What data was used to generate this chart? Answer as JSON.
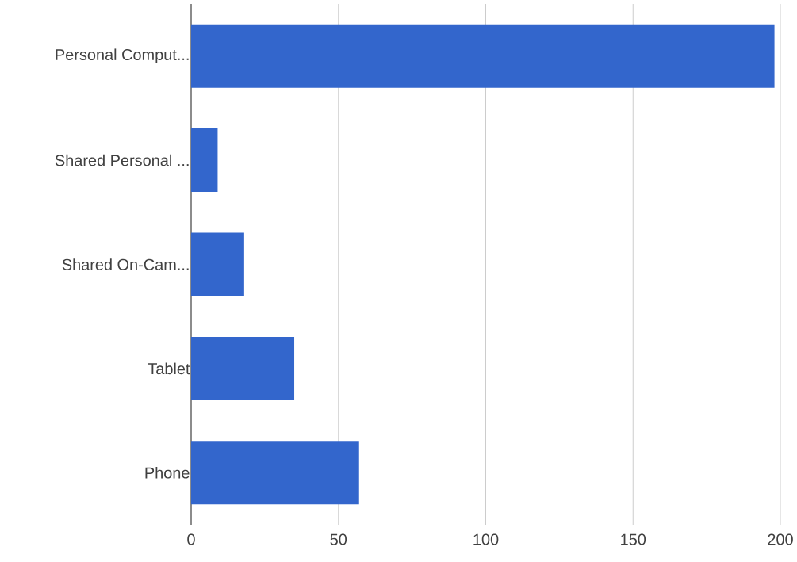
{
  "chart_data": {
    "type": "bar",
    "orientation": "horizontal",
    "categories": [
      "Personal Comput...",
      "Shared Personal ...",
      "Shared On-Cam...",
      "Tablet",
      "Phone"
    ],
    "values": [
      198,
      9,
      18,
      35,
      57
    ],
    "color": "#3366cc",
    "xlim": [
      0,
      200
    ],
    "xticks": [
      0,
      50,
      100,
      150,
      200
    ],
    "grid": "x"
  }
}
